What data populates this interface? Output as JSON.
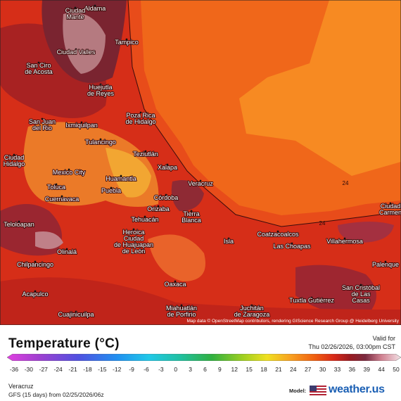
{
  "map": {
    "cities": [
      {
        "lines": [
          "Aldama"
        ]
      },
      {
        "lines": [
          "Ciudad",
          "Mante"
        ]
      },
      {
        "lines": [
          "Tampico"
        ]
      },
      {
        "lines": [
          "Ciudad Valles"
        ]
      },
      {
        "lines": [
          "San Ciro",
          "de Acosta"
        ]
      },
      {
        "lines": [
          "Huejutla",
          "de Reyes"
        ]
      },
      {
        "lines": [
          "Poza Rica",
          "de Hidalgo"
        ]
      },
      {
        "lines": [
          "Ixmiquilpan"
        ]
      },
      {
        "lines": [
          "San Juan",
          "del Rio"
        ]
      },
      {
        "lines": [
          "Tulancingo"
        ]
      },
      {
        "lines": [
          "Teziutlán"
        ]
      },
      {
        "lines": [
          "Ciudad",
          "Hidalgo"
        ]
      },
      {
        "lines": [
          "Xalapa"
        ]
      },
      {
        "lines": [
          "Mexico City"
        ]
      },
      {
        "lines": [
          "Huamantla"
        ]
      },
      {
        "lines": [
          "Veracruz"
        ]
      },
      {
        "lines": [
          "Toluca"
        ]
      },
      {
        "lines": [
          "Puebla"
        ]
      },
      {
        "lines": [
          "Cuernavaca"
        ]
      },
      {
        "lines": [
          "Córdoba"
        ]
      },
      {
        "lines": [
          "Orizaba"
        ]
      },
      {
        "lines": [
          "Tehuacán"
        ]
      },
      {
        "lines": [
          "Tierra",
          "Blanca"
        ]
      },
      {
        "lines": [
          "Teloloapan"
        ]
      },
      {
        "lines": [
          "Coatzacoalcos"
        ]
      },
      {
        "lines": [
          "Las Choapas"
        ]
      },
      {
        "lines": [
          "Villahermosa"
        ]
      },
      {
        "lines": [
          "Heroica",
          "Ciudad",
          "de Huajuapan",
          "de León"
        ]
      },
      {
        "lines": [
          "Olinalá"
        ]
      },
      {
        "lines": [
          "Isla"
        ]
      },
      {
        "lines": [
          "Chilpancingo"
        ]
      },
      {
        "lines": [
          "Palenque"
        ]
      },
      {
        "lines": [
          "Oaxaca"
        ]
      },
      {
        "lines": [
          "San Cristóbal",
          "de Las",
          "Casas"
        ]
      },
      {
        "lines": [
          "Acapulco"
        ]
      },
      {
        "lines": [
          "Tuxtla Gutiérrez"
        ]
      },
      {
        "lines": [
          "Juchitán",
          "de Zaragoza"
        ]
      },
      {
        "lines": [
          "Miahuatlán",
          "de Porfirio"
        ]
      },
      {
        "lines": [
          "Cuajinicuilpa"
        ]
      },
      {
        "lines": [
          "Ciudad",
          "Carmen"
        ]
      }
    ],
    "contour_labels": [
      24,
      24
    ],
    "attribution": "Map data © OpenStreetMap contributors, rendering GIScience Research Group @ Heidelberg University"
  },
  "legend": {
    "title": "Temperature (°C)",
    "ticks": [
      -36,
      -30,
      -27,
      -24,
      -21,
      -18,
      -15,
      -12,
      -9,
      -6,
      -3,
      0,
      3,
      6,
      9,
      12,
      15,
      18,
      21,
      24,
      27,
      30,
      33,
      36,
      39,
      44,
      50
    ]
  },
  "valid": {
    "label": "Valid for",
    "time": "Thu 02/26/2026, 03:00pm CST"
  },
  "footer": {
    "location": "Veracruz",
    "run": "GFS (15 days) from 02/25/2026/06z",
    "model_label": "Model:",
    "brand": "weather.us"
  }
}
